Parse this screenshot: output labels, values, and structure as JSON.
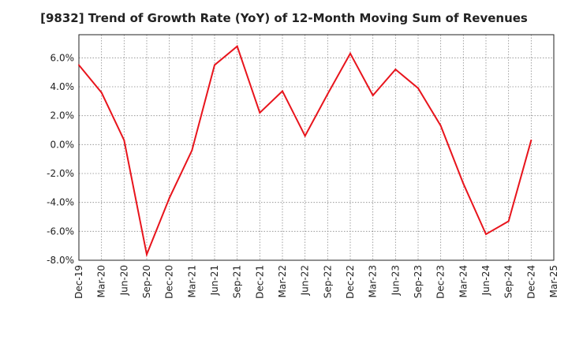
{
  "chart_data": {
    "type": "line",
    "title": "[9832]  Trend of Growth Rate (YoY) of 12-Month Moving Sum of Revenues",
    "xlabel": "",
    "ylabel": "",
    "x_tick_labels": [
      "Dec-19",
      "Mar-20",
      "Jun-20",
      "Sep-20",
      "Dec-20",
      "Mar-21",
      "Jun-21",
      "Sep-21",
      "Dec-21",
      "Mar-22",
      "Jun-22",
      "Sep-22",
      "Dec-22",
      "Mar-23",
      "Jun-23",
      "Sep-23",
      "Dec-23",
      "Mar-24",
      "Jun-24",
      "Sep-24",
      "Dec-24",
      "Mar-25"
    ],
    "y_tick_labels": [
      "6.0%",
      "4.0%",
      "2.0%",
      "0.0%",
      "-2.0%",
      "-4.0%",
      "-6.0%",
      "-8.0%"
    ],
    "y_ticks": [
      6,
      4,
      2,
      0,
      -2,
      -4,
      -6,
      -8
    ],
    "ylim": [
      -8,
      7.6
    ],
    "grid": true,
    "series": [
      {
        "x": [
          "Dec-19",
          "Mar-20",
          "Jun-20",
          "Sep-20",
          "Dec-20",
          "Mar-21",
          "Jun-21",
          "Sep-21",
          "Dec-21",
          "Mar-22",
          "Jun-22",
          "Sep-22",
          "Dec-22",
          "Mar-23",
          "Jun-23",
          "Sep-23",
          "Dec-23",
          "Mar-24",
          "Jun-24",
          "Sep-24",
          "Dec-24"
        ],
        "values": [
          5.5,
          3.6,
          0.3,
          -7.6,
          -3.7,
          -0.4,
          5.5,
          6.8,
          2.2,
          3.7,
          0.6,
          3.5,
          6.3,
          3.4,
          5.2,
          3.9,
          1.3,
          -2.7,
          -6.2,
          -5.3,
          0.3
        ],
        "color": "#e8141c"
      }
    ]
  }
}
